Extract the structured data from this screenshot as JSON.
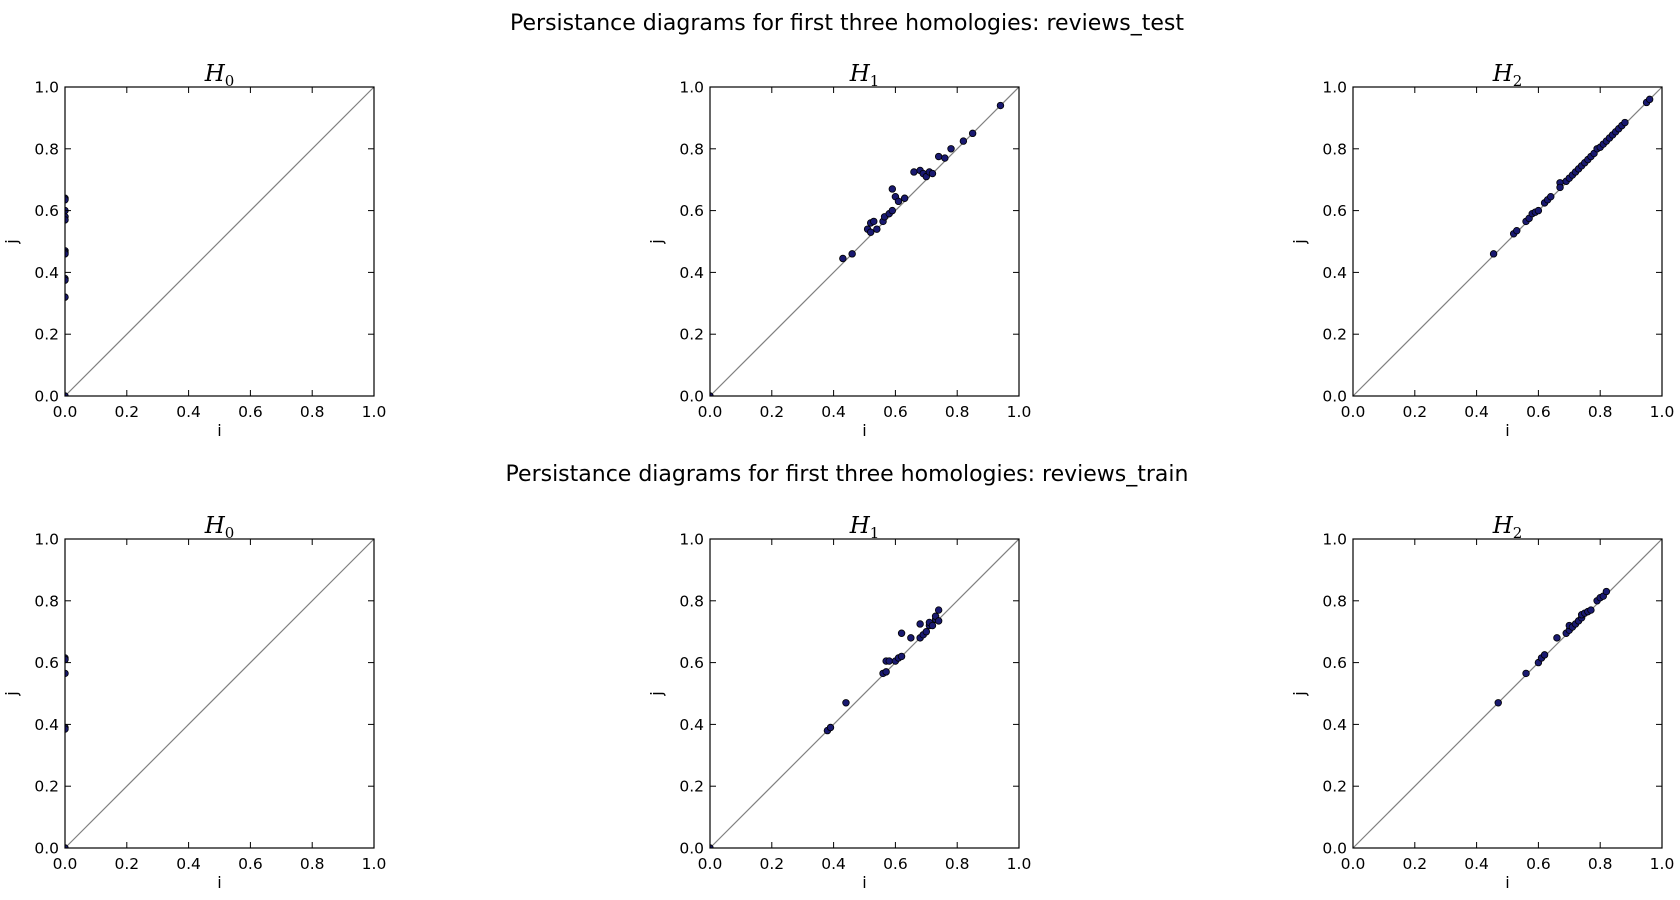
{
  "figure_titles": [
    "Persistance diagrams for first three homologies: reviews_test",
    "Persistance diagrams for first three homologies: reviews_train"
  ],
  "colors": {
    "point_fill": "#191970",
    "point_edge": "#000000",
    "diagonal": "#808080"
  },
  "chart_data": [
    {
      "type": "scatter",
      "group": "reviews_test",
      "title": "H_0",
      "title_main": "H",
      "title_sub": "0",
      "xlabel": "i",
      "ylabel": "j",
      "xlim": [
        0.0,
        1.0
      ],
      "ylim": [
        0.0,
        1.0
      ],
      "xticks": [
        "0.0",
        "0.2",
        "0.4",
        "0.6",
        "0.8",
        "1.0"
      ],
      "yticks": [
        "0.0",
        "0.2",
        "0.4",
        "0.6",
        "0.8",
        "1.0"
      ],
      "diagonal": true,
      "points": [
        [
          0,
          0.64
        ],
        [
          0,
          0.635
        ],
        [
          0,
          0.6
        ],
        [
          0,
          0.58
        ],
        [
          0,
          0.57
        ],
        [
          0,
          0.47
        ],
        [
          0,
          0.465
        ],
        [
          0,
          0.46
        ],
        [
          0,
          0.38
        ],
        [
          0,
          0.375
        ],
        [
          0,
          0.32
        ],
        [
          0,
          0.0
        ]
      ]
    },
    {
      "type": "scatter",
      "group": "reviews_test",
      "title": "H_1",
      "title_main": "H",
      "title_sub": "1",
      "xlabel": "i",
      "ylabel": "j",
      "xlim": [
        0.0,
        1.0
      ],
      "ylim": [
        0.0,
        1.0
      ],
      "xticks": [
        "0.0",
        "0.2",
        "0.4",
        "0.6",
        "0.8",
        "1.0"
      ],
      "yticks": [
        "0.0",
        "0.2",
        "0.4",
        "0.6",
        "0.8",
        "1.0"
      ],
      "diagonal": true,
      "points": [
        [
          0.43,
          0.445
        ],
        [
          0.46,
          0.46
        ],
        [
          0.51,
          0.54
        ],
        [
          0.52,
          0.56
        ],
        [
          0.53,
          0.565
        ],
        [
          0.52,
          0.53
        ],
        [
          0.54,
          0.54
        ],
        [
          0.56,
          0.565
        ],
        [
          0.565,
          0.58
        ],
        [
          0.58,
          0.59
        ],
        [
          0.59,
          0.6
        ],
        [
          0.59,
          0.67
        ],
        [
          0.6,
          0.645
        ],
        [
          0.61,
          0.63
        ],
        [
          0.63,
          0.64
        ],
        [
          0.66,
          0.725
        ],
        [
          0.68,
          0.73
        ],
        [
          0.69,
          0.72
        ],
        [
          0.7,
          0.71
        ],
        [
          0.71,
          0.725
        ],
        [
          0.72,
          0.72
        ],
        [
          0.74,
          0.775
        ],
        [
          0.76,
          0.77
        ],
        [
          0.78,
          0.8
        ],
        [
          0.82,
          0.825
        ],
        [
          0.85,
          0.85
        ],
        [
          0.94,
          0.94
        ],
        [
          0.0,
          0.0
        ]
      ]
    },
    {
      "type": "scatter",
      "group": "reviews_test",
      "title": "H_2",
      "title_main": "H",
      "title_sub": "2",
      "xlabel": "i",
      "ylabel": "j",
      "xlim": [
        0.0,
        1.0
      ],
      "ylim": [
        0.0,
        1.0
      ],
      "xticks": [
        "0.0",
        "0.2",
        "0.4",
        "0.6",
        "0.8",
        "1.0"
      ],
      "yticks": [
        "0.0",
        "0.2",
        "0.4",
        "0.6",
        "0.8",
        "1.0"
      ],
      "diagonal": true,
      "points": [
        [
          0.455,
          0.46
        ],
        [
          0.52,
          0.525
        ],
        [
          0.53,
          0.535
        ],
        [
          0.56,
          0.565
        ],
        [
          0.57,
          0.575
        ],
        [
          0.58,
          0.59
        ],
        [
          0.59,
          0.595
        ],
        [
          0.6,
          0.6
        ],
        [
          0.62,
          0.625
        ],
        [
          0.63,
          0.635
        ],
        [
          0.64,
          0.645
        ],
        [
          0.67,
          0.69
        ],
        [
          0.67,
          0.675
        ],
        [
          0.69,
          0.695
        ],
        [
          0.7,
          0.705
        ],
        [
          0.71,
          0.715
        ],
        [
          0.72,
          0.725
        ],
        [
          0.73,
          0.735
        ],
        [
          0.74,
          0.745
        ],
        [
          0.75,
          0.755
        ],
        [
          0.76,
          0.765
        ],
        [
          0.77,
          0.775
        ],
        [
          0.78,
          0.785
        ],
        [
          0.79,
          0.8
        ],
        [
          0.8,
          0.805
        ],
        [
          0.81,
          0.815
        ],
        [
          0.82,
          0.825
        ],
        [
          0.83,
          0.835
        ],
        [
          0.84,
          0.845
        ],
        [
          0.85,
          0.855
        ],
        [
          0.86,
          0.865
        ],
        [
          0.87,
          0.875
        ],
        [
          0.88,
          0.885
        ],
        [
          0.95,
          0.95
        ],
        [
          0.96,
          0.96
        ]
      ]
    },
    {
      "type": "scatter",
      "group": "reviews_train",
      "title": "H_0",
      "title_main": "H",
      "title_sub": "0",
      "xlabel": "i",
      "ylabel": "j",
      "xlim": [
        0.0,
        1.0
      ],
      "ylim": [
        0.0,
        1.0
      ],
      "xticks": [
        "0.0",
        "0.2",
        "0.4",
        "0.6",
        "0.8",
        "1.0"
      ],
      "yticks": [
        "0.0",
        "0.2",
        "0.4",
        "0.6",
        "0.8",
        "1.0"
      ],
      "diagonal": true,
      "points": [
        [
          0,
          0.615
        ],
        [
          0,
          0.61
        ],
        [
          0,
          0.565
        ],
        [
          0,
          0.39
        ],
        [
          0,
          0.385
        ],
        [
          0,
          0.0
        ]
      ]
    },
    {
      "type": "scatter",
      "group": "reviews_train",
      "title": "H_1",
      "title_main": "H",
      "title_sub": "1",
      "xlabel": "i",
      "ylabel": "j",
      "xlim": [
        0.0,
        1.0
      ],
      "ylim": [
        0.0,
        1.0
      ],
      "xticks": [
        "0.0",
        "0.2",
        "0.4",
        "0.6",
        "0.8",
        "1.0"
      ],
      "yticks": [
        "0.0",
        "0.2",
        "0.4",
        "0.6",
        "0.8",
        "1.0"
      ],
      "diagonal": true,
      "points": [
        [
          0.38,
          0.38
        ],
        [
          0.39,
          0.39
        ],
        [
          0.44,
          0.47
        ],
        [
          0.56,
          0.565
        ],
        [
          0.57,
          0.57
        ],
        [
          0.57,
          0.605
        ],
        [
          0.58,
          0.605
        ],
        [
          0.6,
          0.605
        ],
        [
          0.61,
          0.615
        ],
        [
          0.62,
          0.62
        ],
        [
          0.62,
          0.695
        ],
        [
          0.65,
          0.68
        ],
        [
          0.68,
          0.68
        ],
        [
          0.68,
          0.725
        ],
        [
          0.69,
          0.69
        ],
        [
          0.7,
          0.7
        ],
        [
          0.71,
          0.72
        ],
        [
          0.71,
          0.73
        ],
        [
          0.72,
          0.72
        ],
        [
          0.73,
          0.74
        ],
        [
          0.73,
          0.75
        ],
        [
          0.74,
          0.77
        ],
        [
          0.74,
          0.735
        ],
        [
          0.0,
          0.0
        ]
      ]
    },
    {
      "type": "scatter",
      "group": "reviews_train",
      "title": "H_2",
      "title_main": "H",
      "title_sub": "2",
      "xlabel": "i",
      "ylabel": "j",
      "xlim": [
        0.0,
        1.0
      ],
      "ylim": [
        0.0,
        1.0
      ],
      "xticks": [
        "0.0",
        "0.2",
        "0.4",
        "0.6",
        "0.8",
        "1.0"
      ],
      "yticks": [
        "0.0",
        "0.2",
        "0.4",
        "0.6",
        "0.8",
        "1.0"
      ],
      "diagonal": true,
      "points": [
        [
          0.47,
          0.47
        ],
        [
          0.56,
          0.565
        ],
        [
          0.6,
          0.6
        ],
        [
          0.61,
          0.615
        ],
        [
          0.62,
          0.625
        ],
        [
          0.66,
          0.68
        ],
        [
          0.69,
          0.695
        ],
        [
          0.7,
          0.705
        ],
        [
          0.7,
          0.72
        ],
        [
          0.71,
          0.715
        ],
        [
          0.72,
          0.725
        ],
        [
          0.73,
          0.735
        ],
        [
          0.74,
          0.745
        ],
        [
          0.74,
          0.755
        ],
        [
          0.75,
          0.76
        ],
        [
          0.76,
          0.765
        ],
        [
          0.77,
          0.77
        ],
        [
          0.79,
          0.8
        ],
        [
          0.8,
          0.81
        ],
        [
          0.81,
          0.815
        ],
        [
          0.82,
          0.83
        ]
      ]
    }
  ]
}
